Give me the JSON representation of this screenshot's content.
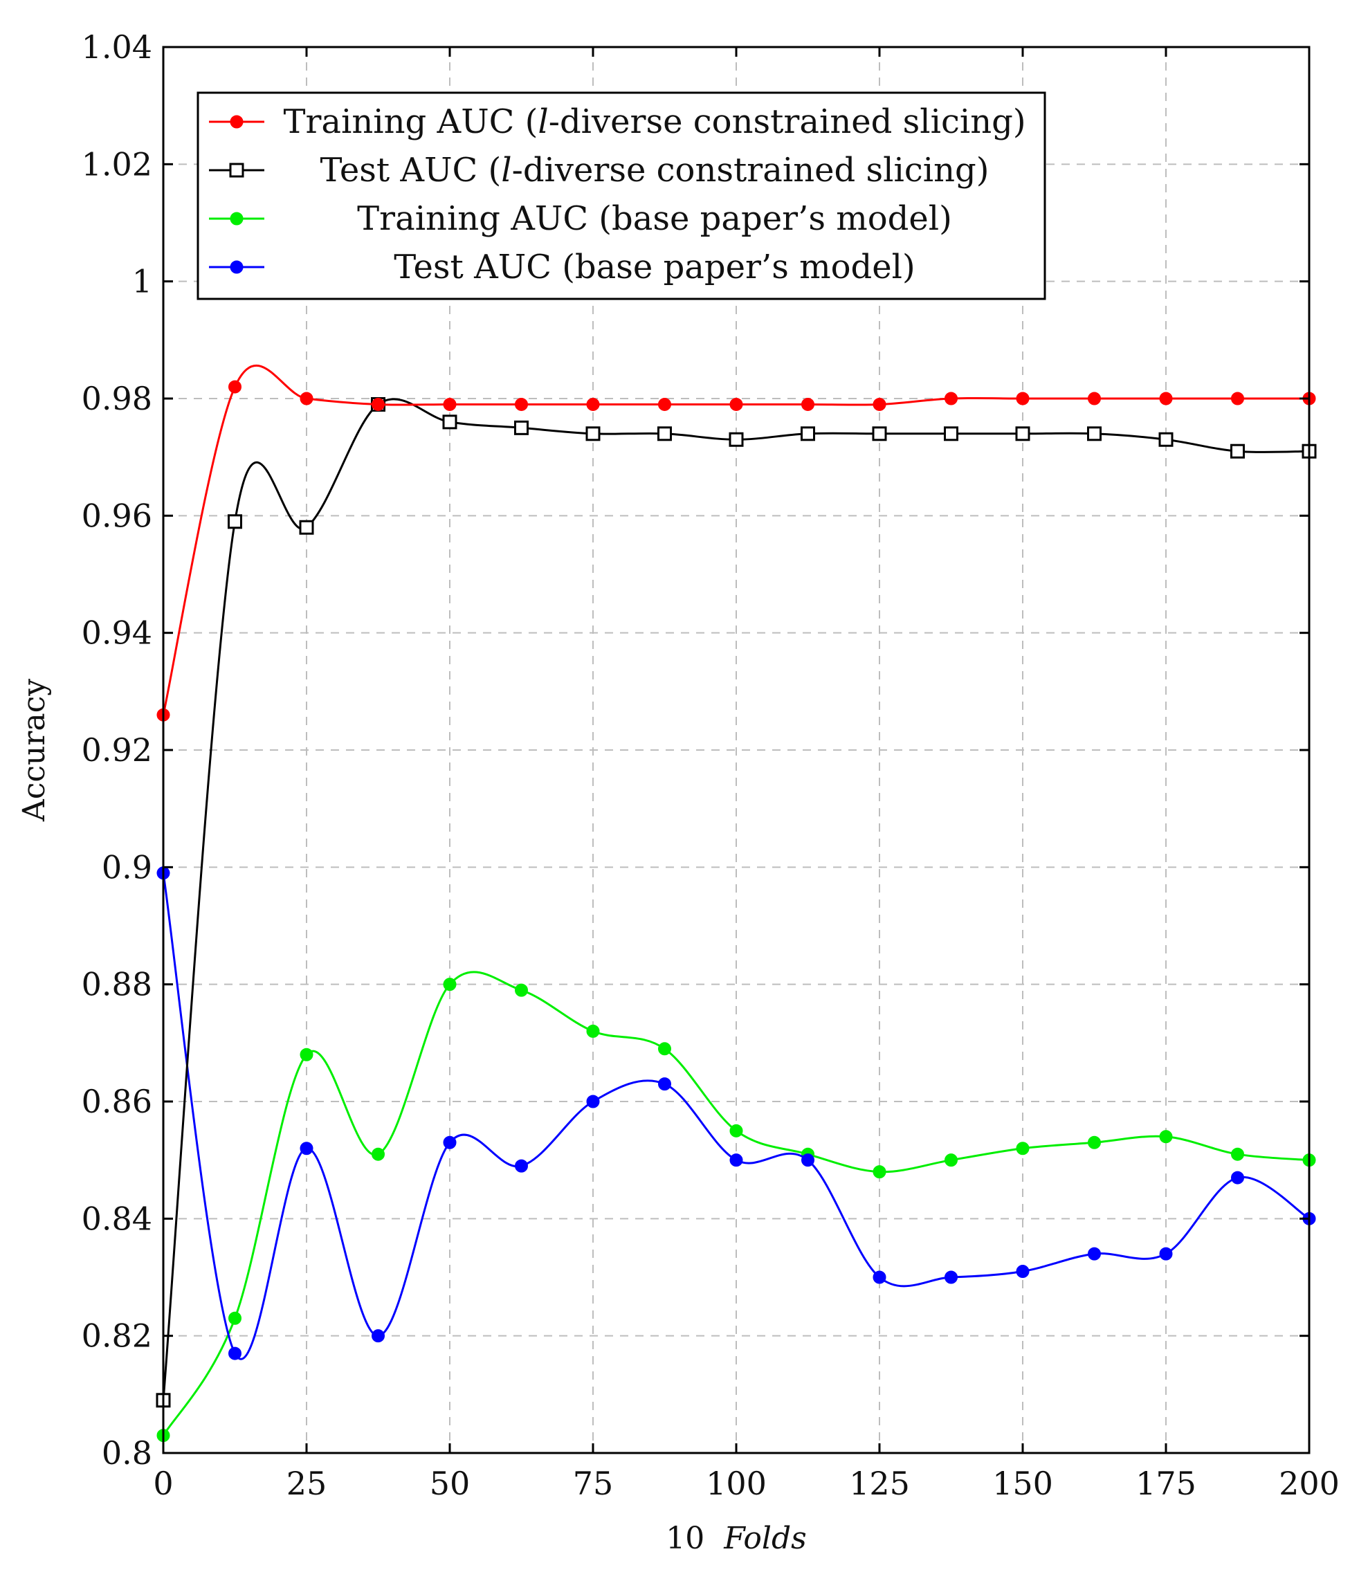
{
  "chart_data": {
    "type": "line",
    "xlabel_number": "10",
    "xlabel_word": "Folds",
    "ylabel": "Accuracy",
    "xlim": [
      0,
      200
    ],
    "ylim": [
      0.8,
      1.04
    ],
    "grid": true,
    "legend_position": "top-left",
    "x_ticks": [
      "0",
      "25",
      "50",
      "75",
      "100",
      "125",
      "150",
      "175",
      "200"
    ],
    "y_ticks": [
      "0.8",
      "0.82",
      "0.84",
      "0.86",
      "0.88",
      "0.9",
      "0.92",
      "0.94",
      "0.96",
      "0.98",
      "1",
      "1.02",
      "1.04"
    ],
    "x": [
      0,
      12.5,
      25,
      37.5,
      50,
      62.5,
      75,
      87.5,
      100,
      112.5,
      125,
      137.5,
      150,
      162.5,
      175,
      187.5,
      200
    ],
    "series": [
      {
        "name_before": "Training AUC (",
        "name_italic": "l",
        "name_after": "-diverse constrained slicing)",
        "color": "#ff0000",
        "marker": "circle",
        "values": [
          0.926,
          0.982,
          0.98,
          0.979,
          0.979,
          0.979,
          0.979,
          0.979,
          0.979,
          0.979,
          0.979,
          0.98,
          0.98,
          0.98,
          0.98,
          0.98,
          0.98
        ]
      },
      {
        "name_before": "Test AUC (",
        "name_italic": "l",
        "name_after": "-diverse constrained slicing)",
        "color": "#000000",
        "marker": "square",
        "values": [
          0.809,
          0.959,
          0.958,
          0.979,
          0.976,
          0.975,
          0.974,
          0.974,
          0.973,
          0.974,
          0.974,
          0.974,
          0.974,
          0.974,
          0.973,
          0.971,
          0.971
        ]
      },
      {
        "name_before": "Training AUC (base paper’s model)",
        "name_italic": "",
        "name_after": "",
        "color": "#00ee00",
        "marker": "circle",
        "values": [
          0.803,
          0.823,
          0.868,
          0.851,
          0.88,
          0.879,
          0.872,
          0.869,
          0.855,
          0.851,
          0.848,
          0.85,
          0.852,
          0.853,
          0.854,
          0.851,
          0.85
        ]
      },
      {
        "name_before": "Test AUC (base paper’s model)",
        "name_italic": "",
        "name_after": "",
        "color": "#0000ff",
        "marker": "circle",
        "values": [
          0.899,
          0.817,
          0.852,
          0.82,
          0.853,
          0.849,
          0.86,
          0.863,
          0.85,
          0.85,
          0.83,
          0.83,
          0.831,
          0.834,
          0.834,
          0.847,
          0.84
        ]
      }
    ]
  }
}
